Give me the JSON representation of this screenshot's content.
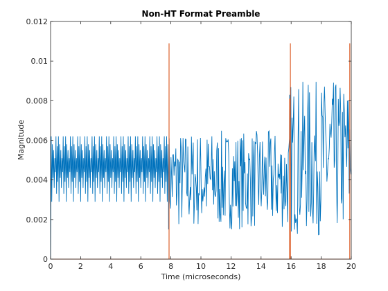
{
  "chart_data": {
    "type": "line",
    "title": "Non-HT Format Preamble",
    "xlabel": "Time (microseconds)",
    "ylabel": "Magnitude",
    "xlim": [
      0,
      20
    ],
    "ylim": [
      0,
      0.012
    ],
    "xticks": [
      0,
      2,
      4,
      6,
      8,
      10,
      12,
      14,
      16,
      18,
      20
    ],
    "xtick_labels": [
      "0",
      "2",
      "4",
      "6",
      "8",
      "10",
      "12",
      "14",
      "16",
      "18",
      "20"
    ],
    "yticks": [
      0,
      0.002,
      0.004,
      0.006,
      0.008,
      0.01,
      0.012
    ],
    "ytick_labels": [
      "0",
      "0.002",
      "0.004",
      "0.006",
      "0.008",
      "0.01",
      "0.012"
    ],
    "grid": false,
    "legend": "none",
    "series": [
      {
        "color": "#0072BD",
        "segments": [
          {
            "x_range": [
              0,
              7.85
            ],
            "pattern": "periodic",
            "peak_levels": [
              0.0062,
              0.0058,
              0.0055,
              0.0051,
              0.0062,
              0.0057
            ],
            "trough_levels": [
              0.0029,
              0.0041,
              0.0036,
              0.0044,
              0.0033,
              0.0039
            ]
          },
          {
            "x_range": [
              7.85,
              15.9
            ],
            "pattern": "noisy",
            "min": 0.0015,
            "max": 0.0065
          },
          {
            "x_range": [
              15.9,
              20
            ],
            "pattern": "noisy",
            "min": 0.0012,
            "max": 0.009
          }
        ]
      },
      {
        "color": "#D95319",
        "x": [
          7.88,
          7.9,
          15.9,
          15.95,
          19.9,
          19.95
        ],
        "y": [
          0.0109,
          0.0,
          0.0081,
          0.0109,
          0.0109,
          0.0
        ]
      }
    ]
  }
}
